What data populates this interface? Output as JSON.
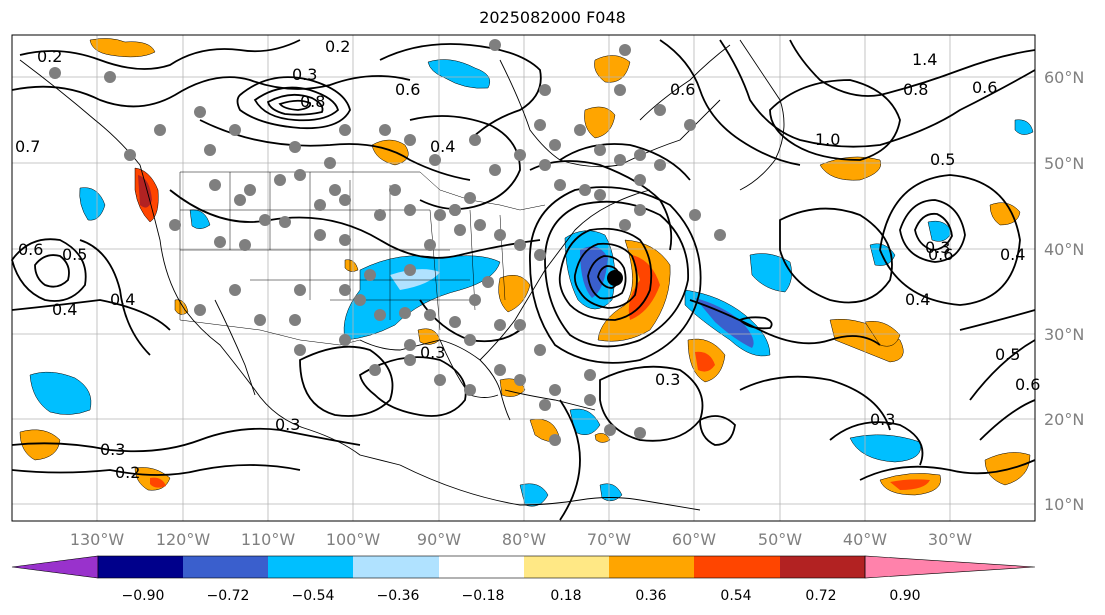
{
  "title": "2025082000 F048",
  "map": {
    "lon_labels": [
      "130°W",
      "120°W",
      "110°W",
      "100°W",
      "90°W",
      "80°W",
      "70°W",
      "60°W",
      "50°W",
      "40°W",
      "30°W"
    ],
    "lat_labels": [
      "60°N",
      "50°N",
      "40°N",
      "30°N",
      "20°N",
      "10°N"
    ],
    "grid": true,
    "contour_labels": [
      "0.2",
      "0.3",
      "0.8",
      "0.6",
      "0.3",
      "0.4",
      "0.6",
      "0.2",
      "0.4",
      "0.4",
      "0.3",
      "0.3",
      "0.3",
      "0.2",
      "0.6",
      "0.5",
      "1.4",
      "0.8",
      "0.6",
      "1.0",
      "0.5",
      "0.6",
      "0.4",
      "0.3",
      "0.4",
      "0.5",
      "0.3",
      "0.7",
      "0.6"
    ]
  },
  "colorbar": {
    "ticks": [
      "−0.90",
      "−0.72",
      "−0.54",
      "−0.36",
      "−0.18",
      "0.18",
      "0.36",
      "0.54",
      "0.72",
      "0.90"
    ],
    "colors": [
      "#9932cc",
      "#00008b",
      "#3a5fcd",
      "#00bfff",
      "#b0e2ff",
      "#ffffff",
      "#ffe885",
      "#ffa500",
      "#ff4500",
      "#b22222",
      "#ff82ab"
    ]
  }
}
